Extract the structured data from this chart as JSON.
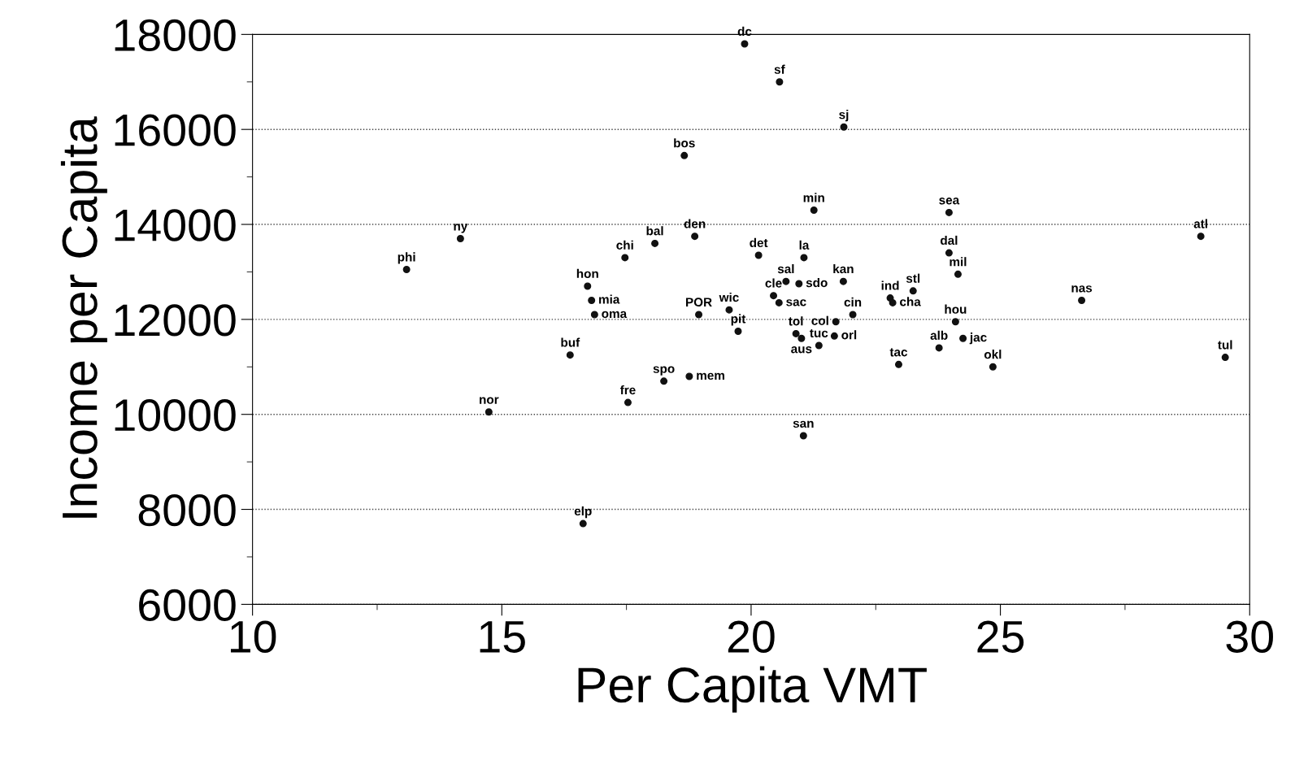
{
  "chart_data": {
    "type": "scatter",
    "xlabel": "Per Capita VMT",
    "ylabel": "Income per Capita",
    "xlim": [
      10,
      30
    ],
    "xticks": [
      10,
      15,
      20,
      25,
      30
    ],
    "ylim": [
      6000,
      18000
    ],
    "yticks": [
      6000,
      8000,
      10000,
      12000,
      14000,
      16000,
      18000
    ],
    "grid": "y",
    "marker": "circle",
    "series": [
      {
        "color": "#111111",
        "x": [
          19.87,
          20.57,
          21.86,
          18.66,
          21.26,
          23.97,
          29.02,
          14.17,
          13.09,
          14.74,
          16.63,
          16.37,
          17.53,
          17.47,
          18.07,
          18.87,
          16.72,
          16.8,
          16.86,
          18.95,
          19.56,
          19.74,
          18.25,
          18.76,
          20.15,
          21.06,
          20.7,
          20.96,
          20.45,
          20.56,
          21.85,
          22.79,
          22.84,
          23.25,
          23.97,
          24.15,
          24.1,
          24.25,
          23.77,
          22.96,
          24.85,
          26.63,
          29.51,
          21.05,
          22.04,
          21.7,
          21.67,
          21.01,
          21.36,
          20.9
        ],
        "values": [
          17800,
          17000,
          16050,
          15450,
          14300,
          14250,
          13750,
          13700,
          13050,
          10050,
          7700,
          11250,
          10250,
          13300,
          13600,
          13750,
          12700,
          12400,
          12100,
          12100,
          12200,
          11750,
          10700,
          10800,
          13350,
          13300,
          12800,
          12750,
          12500,
          12350,
          12800,
          12450,
          12350,
          12600,
          13400,
          12950,
          11950,
          11600,
          11400,
          11050,
          11000,
          12400,
          11200,
          9550,
          12100,
          11950,
          11650,
          11600,
          11450,
          11700
        ]
      }
    ],
    "annotations": [
      {
        "text": "dc",
        "x": 19.87,
        "y": 17800
      },
      {
        "text": "sf",
        "x": 20.57,
        "y": 17000
      },
      {
        "text": "sj",
        "x": 21.86,
        "y": 16050
      },
      {
        "text": "bos",
        "x": 18.66,
        "y": 15450
      },
      {
        "text": "min",
        "x": 21.26,
        "y": 14300
      },
      {
        "text": "sea",
        "x": 23.97,
        "y": 14250
      },
      {
        "text": "atl",
        "x": 29.02,
        "y": 13750
      },
      {
        "text": "ny",
        "x": 14.17,
        "y": 13700
      },
      {
        "text": "phi",
        "x": 13.09,
        "y": 13050
      },
      {
        "text": "nor",
        "x": 14.74,
        "y": 10050
      },
      {
        "text": "elp",
        "x": 16.63,
        "y": 7700
      },
      {
        "text": "buf",
        "x": 16.37,
        "y": 11250
      },
      {
        "text": "fre",
        "x": 17.53,
        "y": 10250
      },
      {
        "text": "chi",
        "x": 17.47,
        "y": 13300
      },
      {
        "text": "bal",
        "x": 18.07,
        "y": 13600
      },
      {
        "text": "den",
        "x": 18.87,
        "y": 13750
      },
      {
        "text": "hon",
        "x": 16.72,
        "y": 12700
      },
      {
        "text": "mia",
        "x": 16.8,
        "y": 12400
      },
      {
        "text": "oma",
        "x": 16.86,
        "y": 12100
      },
      {
        "text": "POR",
        "x": 18.95,
        "y": 12100
      },
      {
        "text": "wic",
        "x": 19.56,
        "y": 12200
      },
      {
        "text": "pit",
        "x": 19.74,
        "y": 11750
      },
      {
        "text": "spo",
        "x": 18.25,
        "y": 10700
      },
      {
        "text": "mem",
        "x": 18.76,
        "y": 10800
      },
      {
        "text": "det",
        "x": 20.15,
        "y": 13350
      },
      {
        "text": "la",
        "x": 21.06,
        "y": 13300
      },
      {
        "text": "sal",
        "x": 20.7,
        "y": 12800
      },
      {
        "text": "sdo",
        "x": 20.96,
        "y": 12750
      },
      {
        "text": "cle",
        "x": 20.45,
        "y": 12500
      },
      {
        "text": "sac",
        "x": 20.56,
        "y": 12350
      },
      {
        "text": "kan",
        "x": 21.85,
        "y": 12800
      },
      {
        "text": "ind",
        "x": 22.79,
        "y": 12450
      },
      {
        "text": "cha",
        "x": 22.84,
        "y": 12350
      },
      {
        "text": "stl",
        "x": 23.25,
        "y": 12600
      },
      {
        "text": "dal",
        "x": 23.97,
        "y": 13400
      },
      {
        "text": "mil",
        "x": 24.15,
        "y": 12950
      },
      {
        "text": "hou",
        "x": 24.1,
        "y": 11950
      },
      {
        "text": "jac",
        "x": 24.25,
        "y": 11600
      },
      {
        "text": "alb",
        "x": 23.77,
        "y": 11400
      },
      {
        "text": "tac",
        "x": 22.96,
        "y": 11050
      },
      {
        "text": "okl",
        "x": 24.85,
        "y": 11000
      },
      {
        "text": "nas",
        "x": 26.63,
        "y": 12400
      },
      {
        "text": "tul",
        "x": 29.51,
        "y": 11200
      },
      {
        "text": "san",
        "x": 21.05,
        "y": 9550
      },
      {
        "text": "cin",
        "x": 22.04,
        "y": 12100
      },
      {
        "text": "col",
        "x": 21.7,
        "y": 11950
      },
      {
        "text": "orl",
        "x": 21.67,
        "y": 11650
      },
      {
        "text": "aus",
        "x": 21.01,
        "y": 11600
      },
      {
        "text": "tuc",
        "x": 21.36,
        "y": 11450
      },
      {
        "text": "tol",
        "x": 20.9,
        "y": 11700
      }
    ]
  }
}
